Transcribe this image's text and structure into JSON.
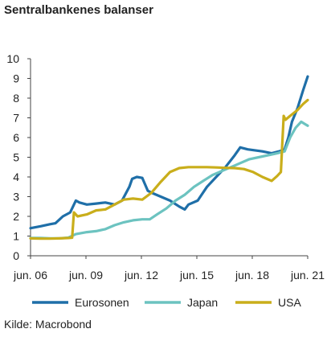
{
  "chart_data": {
    "type": "line",
    "title": "Sentralbankenes balanser",
    "source": "Kilde: Macrobond",
    "xlabel": "",
    "ylabel": "",
    "ylim": [
      0,
      10
    ],
    "yticks": [
      "0",
      "1",
      "2",
      "3",
      "4",
      "5",
      "6",
      "7",
      "8",
      "9",
      "10"
    ],
    "xlim": [
      2006.45,
      2021.45
    ],
    "xticks": [
      {
        "label": "jun. 06",
        "x": 2006.45
      },
      {
        "label": "jun. 09",
        "x": 2009.45
      },
      {
        "label": "jun. 12",
        "x": 2012.45
      },
      {
        "label": "jun. 15",
        "x": 2015.45
      },
      {
        "label": "jun. 18",
        "x": 2018.45
      },
      {
        "label": "jun. 21",
        "x": 2021.45
      }
    ],
    "grid": false,
    "legend_position": "bottom",
    "series": [
      {
        "name": "Eurosonen",
        "color": "#1f6fa8",
        "x": [
          2006.45,
          2007.0,
          2007.5,
          2007.8,
          2008.2,
          2008.6,
          2008.9,
          2009.1,
          2009.5,
          2010.0,
          2010.5,
          2011.0,
          2011.4,
          2011.8,
          2011.95,
          2012.2,
          2012.5,
          2012.8,
          2013.0,
          2013.5,
          2014.0,
          2014.5,
          2014.8,
          2015.0,
          2015.5,
          2016.0,
          2016.5,
          2017.0,
          2017.5,
          2017.8,
          2018.2,
          2018.6,
          2019.0,
          2019.5,
          2019.9,
          2020.2,
          2020.4,
          2020.6,
          2020.9,
          2021.2,
          2021.45
        ],
        "y": [
          1.4,
          1.5,
          1.6,
          1.65,
          2.0,
          2.2,
          2.8,
          2.7,
          2.6,
          2.65,
          2.7,
          2.6,
          2.8,
          3.5,
          3.9,
          4.0,
          3.95,
          3.3,
          3.2,
          3.0,
          2.8,
          2.5,
          2.35,
          2.6,
          2.8,
          3.5,
          4.0,
          4.5,
          5.1,
          5.5,
          5.4,
          5.35,
          5.3,
          5.2,
          5.3,
          5.4,
          6.0,
          6.8,
          7.5,
          8.4,
          9.1
        ]
      },
      {
        "name": "Japan",
        "color": "#6cc3c0",
        "x": [
          2006.45,
          2007.0,
          2007.5,
          2008.0,
          2008.5,
          2008.9,
          2009.5,
          2010.0,
          2010.5,
          2011.0,
          2011.5,
          2012.0,
          2012.5,
          2012.9,
          2013.3,
          2013.8,
          2014.3,
          2014.8,
          2015.3,
          2015.8,
          2016.3,
          2016.8,
          2017.3,
          2017.8,
          2018.3,
          2018.8,
          2019.3,
          2019.8,
          2020.2,
          2020.5,
          2020.8,
          2021.1,
          2021.45
        ],
        "y": [
          0.9,
          0.9,
          0.88,
          0.88,
          0.92,
          1.1,
          1.2,
          1.25,
          1.35,
          1.55,
          1.7,
          1.8,
          1.85,
          1.85,
          2.1,
          2.4,
          2.8,
          3.1,
          3.5,
          3.8,
          4.1,
          4.3,
          4.5,
          4.7,
          4.9,
          5.0,
          5.1,
          5.2,
          5.3,
          6.0,
          6.5,
          6.8,
          6.6
        ]
      },
      {
        "name": "USA",
        "color": "#c9ae1b",
        "x": [
          2006.45,
          2007.0,
          2007.5,
          2008.0,
          2008.5,
          2008.7,
          2008.8,
          2009.0,
          2009.5,
          2010.0,
          2010.5,
          2011.0,
          2011.5,
          2012.0,
          2012.5,
          2013.0,
          2013.5,
          2014.0,
          2014.5,
          2015.0,
          2015.5,
          2016.0,
          2016.5,
          2017.0,
          2017.5,
          2018.0,
          2018.5,
          2019.0,
          2019.5,
          2019.8,
          2020.0,
          2020.15,
          2020.25,
          2020.5,
          2020.9,
          2021.2,
          2021.45
        ],
        "y": [
          0.88,
          0.87,
          0.87,
          0.88,
          0.9,
          0.92,
          2.2,
          2.0,
          2.1,
          2.3,
          2.35,
          2.6,
          2.85,
          2.9,
          2.85,
          3.2,
          3.75,
          4.25,
          4.45,
          4.5,
          4.5,
          4.5,
          4.48,
          4.46,
          4.45,
          4.4,
          4.25,
          4.0,
          3.8,
          4.05,
          4.25,
          7.1,
          6.9,
          7.1,
          7.4,
          7.7,
          7.9
        ]
      }
    ]
  }
}
